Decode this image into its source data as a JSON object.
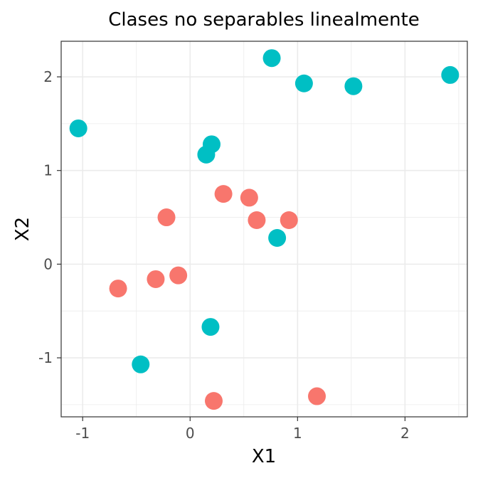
{
  "chart_data": {
    "type": "scatter",
    "title": "Clases no separables linealmente",
    "xlabel": "X1",
    "ylabel": "X2",
    "xlim": [
      -1.2,
      2.58
    ],
    "ylim": [
      -1.63,
      2.38
    ],
    "xticks": [
      -1,
      0,
      1,
      2
    ],
    "yticks": [
      -1,
      0,
      1,
      2
    ],
    "xtick_labels": [
      "-1",
      "0",
      "1",
      "2"
    ],
    "ytick_labels": [
      "-1",
      "0",
      "1",
      "2"
    ],
    "grid": true,
    "legend": "none",
    "series": [
      {
        "color": "#F8766D",
        "points": [
          {
            "x": 0.31,
            "y": 0.75
          },
          {
            "x": 0.55,
            "y": 0.71
          },
          {
            "x": -0.22,
            "y": 0.5
          },
          {
            "x": 0.62,
            "y": 0.47
          },
          {
            "x": 0.92,
            "y": 0.47
          },
          {
            "x": -0.11,
            "y": -0.12
          },
          {
            "x": -0.32,
            "y": -0.16
          },
          {
            "x": -0.67,
            "y": -0.26
          },
          {
            "x": 1.18,
            "y": -1.41
          },
          {
            "x": 0.22,
            "y": -1.46
          }
        ]
      },
      {
        "color": "#00BFC4",
        "points": [
          {
            "x": 0.76,
            "y": 2.2
          },
          {
            "x": 2.42,
            "y": 2.02
          },
          {
            "x": 1.06,
            "y": 1.93
          },
          {
            "x": 1.52,
            "y": 1.9
          },
          {
            "x": -1.04,
            "y": 1.45
          },
          {
            "x": 0.2,
            "y": 1.28
          },
          {
            "x": 0.15,
            "y": 1.17
          },
          {
            "x": 0.81,
            "y": 0.28
          },
          {
            "x": 0.19,
            "y": -0.67
          },
          {
            "x": -0.46,
            "y": -1.07
          }
        ]
      }
    ]
  }
}
